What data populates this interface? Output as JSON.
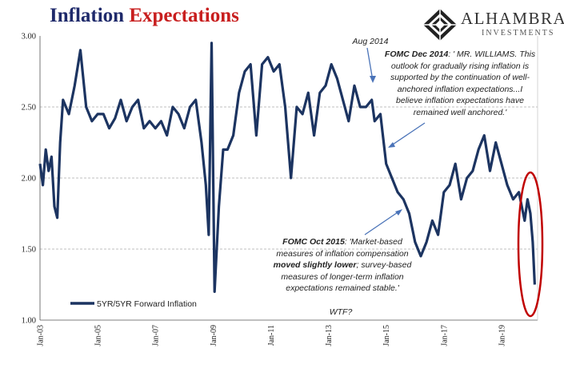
{
  "title": {
    "part1": "Inflation",
    "part2": "Expectations"
  },
  "logo": {
    "name": "ALHAMBRA",
    "sub": "INVESTMENTS"
  },
  "chart_data": {
    "type": "line",
    "title": "Inflation Expectations",
    "ylim": [
      1.0,
      3.0
    ],
    "y_ticks": [
      "3.00",
      "2.50",
      "2.00",
      "1.50",
      "1.00"
    ],
    "x_ticks": [
      "Jan-03",
      "Jan-05",
      "Jan-07",
      "Jan-09",
      "Jan-11",
      "Jan-13",
      "Jan-15",
      "Jan-17",
      "Jan-19"
    ],
    "grid": "horizontal dashed",
    "legend": "bottom-left",
    "series": [
      {
        "name": "5YR/5YR Forward Inflation",
        "color": "#1c3461",
        "x": [
          2003.0,
          2003.1,
          2003.2,
          2003.3,
          2003.4,
          2003.5,
          2003.6,
          2003.7,
          2003.8,
          2004.0,
          2004.2,
          2004.4,
          2004.6,
          2004.8,
          2005.0,
          2005.2,
          2005.4,
          2005.6,
          2005.8,
          2006.0,
          2006.2,
          2006.4,
          2006.6,
          2006.8,
          2007.0,
          2007.2,
          2007.4,
          2007.6,
          2007.8,
          2008.0,
          2008.2,
          2008.4,
          2008.6,
          2008.75,
          2008.85,
          2008.95,
          2009.05,
          2009.2,
          2009.35,
          2009.5,
          2009.7,
          2009.9,
          2010.1,
          2010.3,
          2010.5,
          2010.7,
          2010.9,
          2011.1,
          2011.3,
          2011.5,
          2011.7,
          2011.9,
          2012.1,
          2012.3,
          2012.5,
          2012.7,
          2012.9,
          2013.1,
          2013.3,
          2013.5,
          2013.7,
          2013.9,
          2014.1,
          2014.3,
          2014.5,
          2014.6,
          2014.8,
          2015.0,
          2015.2,
          2015.4,
          2015.6,
          2015.8,
          2016.0,
          2016.2,
          2016.4,
          2016.6,
          2016.8,
          2017.0,
          2017.2,
          2017.4,
          2017.6,
          2017.8,
          2018.0,
          2018.2,
          2018.4,
          2018.6,
          2018.8,
          2019.0,
          2019.2,
          2019.4,
          2019.6,
          2019.8,
          2019.9,
          2020.0,
          2020.08,
          2020.15
        ],
        "values": [
          2.1,
          1.95,
          2.2,
          2.05,
          2.15,
          1.8,
          1.72,
          2.25,
          2.55,
          2.45,
          2.65,
          2.9,
          2.5,
          2.4,
          2.45,
          2.45,
          2.35,
          2.42,
          2.55,
          2.4,
          2.5,
          2.55,
          2.35,
          2.4,
          2.35,
          2.4,
          2.3,
          2.5,
          2.45,
          2.35,
          2.5,
          2.55,
          2.25,
          1.95,
          1.6,
          2.95,
          1.2,
          1.8,
          2.2,
          2.2,
          2.3,
          2.6,
          2.75,
          2.8,
          2.3,
          2.8,
          2.85,
          2.75,
          2.8,
          2.5,
          2.0,
          2.5,
          2.45,
          2.6,
          2.3,
          2.6,
          2.65,
          2.8,
          2.7,
          2.55,
          2.4,
          2.65,
          2.5,
          2.5,
          2.55,
          2.4,
          2.45,
          2.1,
          2.0,
          1.9,
          1.85,
          1.75,
          1.55,
          1.45,
          1.55,
          1.7,
          1.6,
          1.9,
          1.95,
          2.1,
          1.85,
          2.0,
          2.05,
          2.2,
          2.3,
          2.05,
          2.25,
          2.1,
          1.95,
          1.85,
          1.9,
          1.7,
          1.85,
          1.75,
          1.55,
          1.25
        ]
      }
    ],
    "annotations": {
      "aug2014": "Aug 2014",
      "dec2014_head": "FOMC Dec 2014",
      "dec2014_line1": ": ' MR. WILLIAMS. This",
      "dec2014_line2": "outlook for gradually rising inflation is",
      "dec2014_line3": "supported by the continuation of well-",
      "dec2014_line4": "anchored inflation expectations...I",
      "dec2014_line5": "believe inflation expectations have",
      "dec2014_line6": "remained well anchored.'",
      "oct2015_head": "FOMC Oct 2015",
      "oct2015_line1": ": 'Market-based",
      "oct2015_line2": "measures of inflation compensation",
      "oct2015_line3_bold": "moved slightly lower",
      "oct2015_line3": "; survey-based",
      "oct2015_line4": "measures of longer-term inflation",
      "oct2015_line5": "expectations remained stable.'",
      "wtf": "WTF?"
    }
  }
}
